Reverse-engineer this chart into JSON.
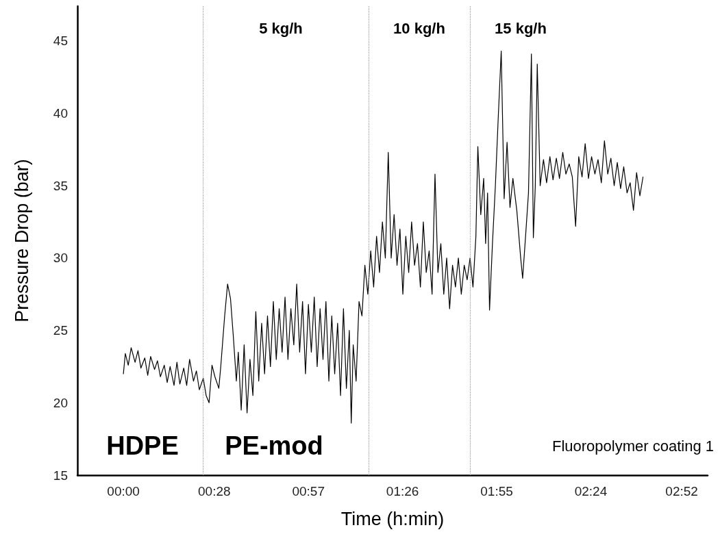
{
  "chart_data": {
    "type": "line",
    "xlabel": "Time (h:min)",
    "ylabel": "Pressure Drop (bar)",
    "annotations": [
      "5 kg/h",
      "10 kg/h",
      "15 kg/h",
      "HDPE",
      "PE-mod",
      "Fluoropolymer coating 1"
    ],
    "xlim": [
      -0.236,
      3.0
    ],
    "ylim": [
      15,
      47.4
    ],
    "xticks": [
      {
        "value": 0,
        "label": "00:00"
      },
      {
        "value": 0.4667,
        "label": "00:28"
      },
      {
        "value": 0.95,
        "label": "00:57"
      },
      {
        "value": 1.4333,
        "label": "01:26"
      },
      {
        "value": 1.9167,
        "label": "01:55"
      },
      {
        "value": 2.4,
        "label": "02:24"
      },
      {
        "value": 2.8667,
        "label": "02:52"
      }
    ],
    "yticks": [
      15,
      20,
      25,
      30,
      35,
      40,
      45
    ],
    "grid": false,
    "marker": "none",
    "line_style": "solid",
    "ref_lines": [
      {
        "axis": "x",
        "value": 0.41,
        "color": "#999999",
        "line_style": "dotted"
      },
      {
        "axis": "x",
        "value": 1.26,
        "color": "#999999",
        "line_style": "dotted"
      },
      {
        "axis": "x",
        "value": 1.78,
        "color": "#999999",
        "line_style": "dotted"
      }
    ],
    "series": [
      {
        "color": "#000000",
        "x": [
          0.0,
          0.01,
          0.025,
          0.04,
          0.06,
          0.075,
          0.09,
          0.11,
          0.125,
          0.14,
          0.16,
          0.175,
          0.19,
          0.21,
          0.225,
          0.24,
          0.26,
          0.275,
          0.29,
          0.31,
          0.325,
          0.34,
          0.36,
          0.375,
          0.39,
          0.41,
          0.425,
          0.44,
          0.455,
          0.47,
          0.49,
          0.5,
          0.52,
          0.535,
          0.55,
          0.565,
          0.58,
          0.59,
          0.605,
          0.62,
          0.635,
          0.65,
          0.665,
          0.68,
          0.695,
          0.71,
          0.725,
          0.74,
          0.755,
          0.77,
          0.785,
          0.8,
          0.815,
          0.83,
          0.845,
          0.86,
          0.875,
          0.89,
          0.905,
          0.92,
          0.935,
          0.95,
          0.965,
          0.98,
          0.995,
          1.01,
          1.025,
          1.04,
          1.055,
          1.07,
          1.085,
          1.1,
          1.115,
          1.13,
          1.145,
          1.16,
          1.17,
          1.18,
          1.195,
          1.21,
          1.225,
          1.24,
          1.255,
          1.27,
          1.285,
          1.3,
          1.315,
          1.33,
          1.345,
          1.36,
          1.375,
          1.39,
          1.405,
          1.42,
          1.435,
          1.45,
          1.465,
          1.48,
          1.495,
          1.51,
          1.525,
          1.54,
          1.555,
          1.57,
          1.585,
          1.6,
          1.615,
          1.63,
          1.645,
          1.66,
          1.675,
          1.69,
          1.705,
          1.72,
          1.735,
          1.75,
          1.765,
          1.78,
          1.795,
          1.81,
          1.82,
          1.835,
          1.85,
          1.86,
          1.87,
          1.88,
          1.895,
          1.91,
          1.925,
          1.94,
          1.955,
          1.97,
          1.985,
          2.0,
          2.02,
          2.04,
          2.05,
          2.065,
          2.08,
          2.095,
          2.105,
          2.115,
          2.125,
          2.14,
          2.157,
          2.173,
          2.19,
          2.206,
          2.223,
          2.239,
          2.256,
          2.272,
          2.289,
          2.305,
          2.322,
          2.338,
          2.355,
          2.371,
          2.388,
          2.404,
          2.421,
          2.437,
          2.454,
          2.47,
          2.487,
          2.503,
          2.52,
          2.536,
          2.553,
          2.569,
          2.586,
          2.602,
          2.619,
          2.635,
          2.652,
          2.668
        ],
        "values": [
          22.0,
          23.4,
          22.6,
          23.8,
          22.8,
          23.6,
          22.4,
          23.1,
          21.9,
          23.2,
          22.3,
          22.9,
          21.8,
          22.6,
          21.4,
          22.5,
          21.2,
          22.8,
          21.3,
          22.4,
          21.2,
          23.0,
          21.5,
          22.2,
          20.9,
          21.7,
          20.5,
          20.0,
          22.6,
          21.8,
          21.0,
          22.5,
          26.0,
          28.2,
          27.2,
          24.5,
          21.5,
          23.5,
          19.5,
          24.0,
          19.3,
          23.0,
          20.5,
          26.3,
          21.5,
          25.5,
          22.0,
          26.0,
          22.5,
          27.0,
          23.0,
          26.5,
          23.5,
          27.3,
          23.0,
          26.5,
          24.0,
          28.2,
          23.5,
          27.0,
          22.0,
          26.8,
          23.5,
          27.3,
          22.5,
          26.5,
          23.0,
          27.0,
          21.5,
          26.0,
          22.0,
          25.5,
          20.5,
          26.5,
          21.0,
          25.0,
          18.6,
          24.0,
          21.5,
          27.0,
          26.0,
          29.5,
          27.5,
          30.5,
          28.0,
          31.5,
          29.0,
          32.5,
          30.0,
          37.3,
          30.0,
          33.0,
          29.5,
          32.0,
          27.5,
          31.5,
          29.0,
          32.5,
          29.5,
          31.0,
          28.0,
          32.5,
          29.0,
          30.5,
          27.5,
          35.8,
          29.0,
          31.0,
          27.5,
          30.0,
          26.5,
          29.5,
          28.0,
          30.0,
          27.5,
          29.5,
          28.5,
          30.0,
          28.0,
          31.5,
          37.7,
          33.0,
          35.5,
          31.0,
          34.5,
          26.4,
          31.0,
          35.0,
          39.8,
          44.3,
          34.1,
          38.0,
          33.5,
          35.5,
          33.3,
          30.0,
          28.6,
          31.5,
          34.5,
          44.1,
          31.4,
          35.0,
          43.4,
          35.0,
          36.8,
          35.2,
          37.0,
          35.4,
          36.9,
          35.5,
          37.3,
          35.8,
          36.5,
          35.6,
          32.2,
          37.0,
          35.6,
          37.9,
          35.5,
          37.0,
          35.8,
          36.8,
          35.2,
          38.1,
          35.8,
          36.9,
          35.0,
          36.6,
          34.8,
          36.3,
          34.5,
          35.2,
          33.3,
          35.9,
          34.3,
          35.6
        ]
      }
    ]
  }
}
